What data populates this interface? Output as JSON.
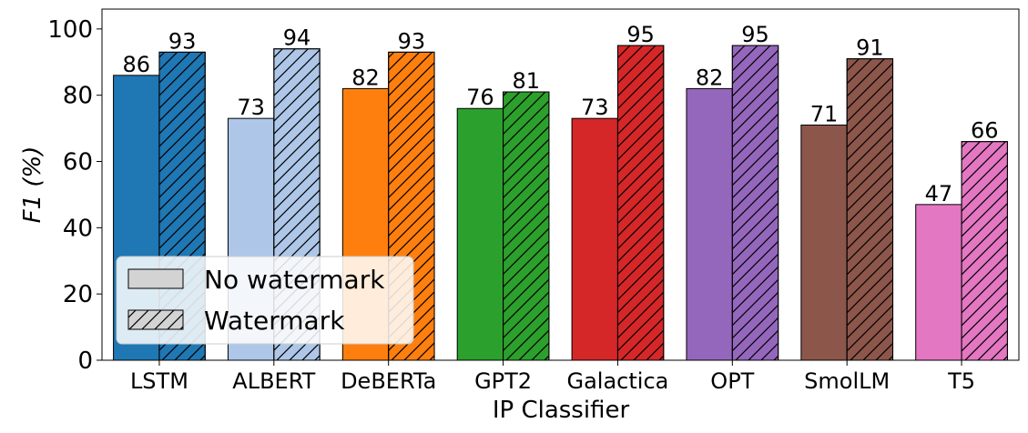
{
  "chart_data": {
    "type": "bar",
    "xlabel": "IP Classifier",
    "ylabel": "F1 (%)",
    "ylim": [
      0,
      106
    ],
    "yticks": [
      0,
      20,
      40,
      60,
      80,
      100
    ],
    "grid": false,
    "legend_position": "lower-left",
    "categories": [
      "LSTM",
      "ALBERT",
      "DeBERTa",
      "GPT2",
      "Galactica",
      "OPT",
      "SmolLM",
      "T5"
    ],
    "category_colors": [
      "#1f77b4",
      "#aec7e8",
      "#ff7f0e",
      "#2ca02c",
      "#d62728",
      "#9467bd",
      "#8c564b",
      "#e377c2"
    ],
    "series": [
      {
        "name": "No watermark",
        "hatch": "none",
        "values": [
          86,
          73,
          82,
          76,
          73,
          82,
          71,
          47
        ]
      },
      {
        "name": "Watermark",
        "hatch": "diagonal",
        "values": [
          93,
          94,
          93,
          81,
          95,
          95,
          91,
          66
        ]
      }
    ],
    "legend_swatch_color": "#d3d3d3"
  }
}
